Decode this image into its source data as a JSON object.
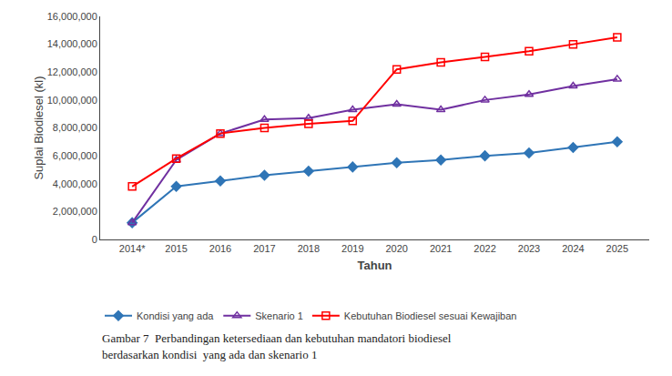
{
  "chart_data": {
    "type": "line",
    "categories": [
      "2014*",
      "2015",
      "2016",
      "2017",
      "2018",
      "2019",
      "2020",
      "2021",
      "2022",
      "2023",
      "2024",
      "2025"
    ],
    "series": [
      {
        "name": "Kondisi yang ada",
        "color": "#2F75B6",
        "marker": "diamond",
        "values": [
          1200000,
          3800000,
          4200000,
          4600000,
          4900000,
          5200000,
          5500000,
          5700000,
          6000000,
          6200000,
          6600000,
          7000000
        ]
      },
      {
        "name": "Skenario 1",
        "color": "#7030A0",
        "marker": "triangle-up-open",
        "values": [
          1200000,
          5700000,
          7600000,
          8600000,
          8700000,
          9300000,
          9700000,
          9300000,
          10000000,
          10400000,
          11000000,
          11500000
        ]
      },
      {
        "name": "Kebutuhan Biodiesel sesuai Kewajiban",
        "color": "#FF0000",
        "marker": "square-open",
        "values": [
          3800000,
          5800000,
          7600000,
          8000000,
          8300000,
          8500000,
          12200000,
          12700000,
          13100000,
          13500000,
          14000000,
          14500000
        ]
      }
    ],
    "xlabel": "Tahun",
    "ylabel": "Suplai Biodiesel (kl)",
    "ylim": [
      0,
      16000000
    ],
    "yticks": [
      0,
      {
        "value": 2000000,
        "label": "2,000,000"
      },
      {
        "value": 4000000,
        "label": "4,000,000"
      },
      {
        "value": 6000000,
        "label": "6,000,000"
      },
      {
        "value": 8000000,
        "label": "8,000,000"
      },
      {
        "value": 10000000,
        "label": "10,000,000"
      },
      {
        "value": 12000000,
        "label": "12,000,000"
      },
      {
        "value": 14000000,
        "label": "14,000,000"
      },
      {
        "value": 16000000,
        "label": "16,000,000"
      }
    ],
    "grid": false,
    "legend": "bottom",
    "annotations": [
      "Gambar 7  Perbandingan ketersediaan dan kebutuhan mandatori biodiesel",
      "berdasarkan kondisi  yang ada dan skenario 1"
    ]
  }
}
